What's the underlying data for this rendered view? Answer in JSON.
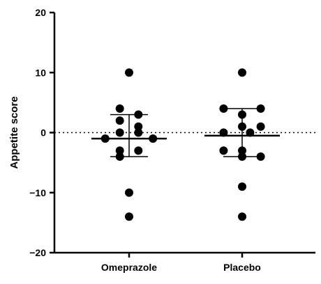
{
  "chart_data": {
    "type": "scatter",
    "title": "",
    "xlabel": "",
    "ylabel": "Appetite score",
    "ylim": [
      -20,
      20
    ],
    "yticks": [
      20,
      10,
      0,
      -10,
      -20
    ],
    "ytick_labels": [
      "20",
      "10",
      "0",
      "−10",
      "−20"
    ],
    "grid": false,
    "reference_line": {
      "y": 0,
      "style": "dotted"
    },
    "categories": [
      "Omeprazole",
      "Placebo"
    ],
    "series": [
      {
        "category": "Omeprazole",
        "points": [
          {
            "x": 0.0,
            "y": 10
          },
          {
            "x": -0.35,
            "y": 4
          },
          {
            "x": 0.35,
            "y": 3
          },
          {
            "x": -0.35,
            "y": 2
          },
          {
            "x": 0.35,
            "y": 1
          },
          {
            "x": -0.35,
            "y": 0
          },
          {
            "x": 0.35,
            "y": 0
          },
          {
            "x": -0.9,
            "y": -1
          },
          {
            "x": 0.9,
            "y": -1
          },
          {
            "x": -0.35,
            "y": -3
          },
          {
            "x": 0.35,
            "y": -3
          },
          {
            "x": -0.35,
            "y": -4
          },
          {
            "x": 0.0,
            "y": -10
          },
          {
            "x": 0.0,
            "y": -14
          }
        ],
        "mean": -1,
        "error_upper": 3,
        "error_lower": -4
      },
      {
        "category": "Placebo",
        "points": [
          {
            "x": 0.0,
            "y": 10
          },
          {
            "x": -0.7,
            "y": 4
          },
          {
            "x": 0.7,
            "y": 4
          },
          {
            "x": 0.0,
            "y": 3
          },
          {
            "x": 0.0,
            "y": 1
          },
          {
            "x": 0.7,
            "y": 1
          },
          {
            "x": -0.7,
            "y": 0
          },
          {
            "x": 0.3,
            "y": 0
          },
          {
            "x": -0.7,
            "y": -3
          },
          {
            "x": 0.0,
            "y": -3
          },
          {
            "x": 0.7,
            "y": -4
          },
          {
            "x": 0.0,
            "y": -4
          },
          {
            "x": 0.0,
            "y": -9
          },
          {
            "x": 0.0,
            "y": -14
          }
        ],
        "mean": -0.5,
        "error_upper": 4,
        "error_lower": -4
      }
    ]
  }
}
